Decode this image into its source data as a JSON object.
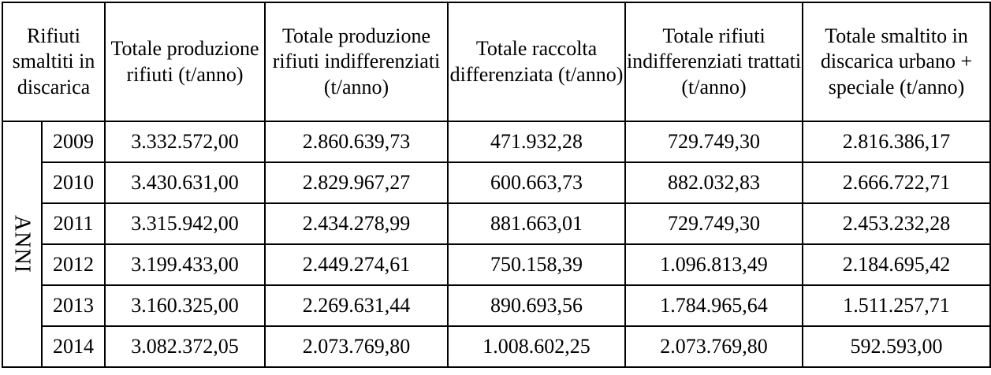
{
  "table": {
    "corner_header": "Rifiuti smaltiti in discarica",
    "columns": [
      "Totale produzione rifiuti (t/anno)",
      "Totale produzione rifiuti indifferenziati (t/anno)",
      "Totale raccolta differenziata (t/anno)",
      "Totale rifiuti indifferenziati trattati (t/anno)",
      "Totale smaltito in discarica urbano + speciale (t/anno)"
    ],
    "row_group_label": "ANNI",
    "rows": [
      {
        "year": "2009",
        "values": [
          "3.332.572,00",
          "2.860.639,73",
          "471.932,28",
          "729.749,30",
          "2.816.386,17"
        ]
      },
      {
        "year": "2010",
        "values": [
          "3.430.631,00",
          "2.829.967,27",
          "600.663,73",
          "882.032,83",
          "2.666.722,71"
        ]
      },
      {
        "year": "2011",
        "values": [
          "3.315.942,00",
          "2.434.278,99",
          "881.663,01",
          "729.749,30",
          "2.453.232,28"
        ]
      },
      {
        "year": "2012",
        "values": [
          "3.199.433,00",
          "2.449.274,61",
          "750.158,39",
          "1.096.813,49",
          "2.184.695,42"
        ]
      },
      {
        "year": "2013",
        "values": [
          "3.160.325,00",
          "2.269.631,44",
          "890.693,56",
          "1.784.965,64",
          "1.511.257,71"
        ]
      },
      {
        "year": "2014",
        "values": [
          "3.082.372,05",
          "2.073.769,80",
          "1.008.602,25",
          "2.073.769,80",
          "592.593,00"
        ]
      }
    ]
  }
}
